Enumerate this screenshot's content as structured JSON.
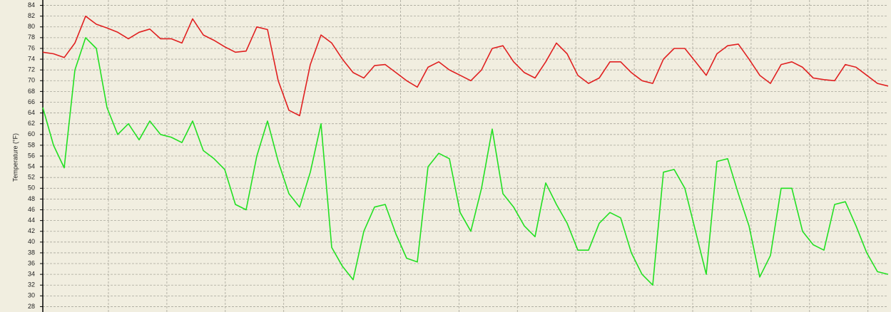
{
  "chart_data": {
    "type": "line",
    "y_label": "Temperature (°F)",
    "ylim": [
      27,
      85
    ],
    "yticks": [
      28,
      30,
      32,
      34,
      36,
      38,
      40,
      42,
      44,
      46,
      48,
      50,
      52,
      54,
      56,
      58,
      60,
      62,
      64,
      66,
      68,
      70,
      72,
      74,
      76,
      78,
      80,
      82,
      84
    ],
    "grid": true,
    "series": [
      {
        "color": "#e02020",
        "values": [
          75.3,
          75,
          74.3,
          77,
          82,
          80.5,
          79.8,
          79,
          77.8,
          79,
          79.6,
          77.8,
          77.8,
          77,
          81.5,
          78.5,
          77.5,
          76.3,
          75.3,
          75.5,
          80,
          79.5,
          70,
          64.5,
          63.5,
          73,
          78.5,
          77,
          74,
          71.5,
          70.5,
          72.8,
          73,
          71.5,
          70,
          68.8,
          72.5,
          73.5,
          72,
          71,
          70,
          72,
          76,
          76.5,
          73.5,
          71.5,
          70.5,
          73.5,
          77,
          75,
          71,
          69.5,
          70.5,
          73.5,
          73.5,
          71.5,
          70,
          69.5,
          74,
          76,
          76,
          73.5,
          71,
          75,
          76.5,
          76.8,
          74,
          71,
          69.5,
          73,
          73.5,
          72.5,
          70.5,
          70.2,
          70,
          73,
          72.5,
          71,
          69.5,
          69
        ]
      },
      {
        "color": "#22e022",
        "values": [
          65,
          58,
          53.8,
          72,
          78,
          76,
          65,
          60,
          62,
          59,
          62.5,
          60,
          59.5,
          58.5,
          62.5,
          57,
          55.5,
          53.5,
          47,
          46,
          56,
          62.5,
          55,
          49,
          46.5,
          53,
          62,
          39,
          35.5,
          33,
          42,
          46.5,
          47,
          41.5,
          37,
          36.3,
          54,
          56.5,
          55.5,
          45.5,
          42,
          50,
          61,
          49,
          46.5,
          43,
          41,
          51,
          47,
          43.5,
          38.5,
          38.5,
          43.5,
          45.5,
          44.5,
          38,
          34,
          32,
          53,
          53.5,
          50,
          42,
          34,
          55,
          55.5,
          49,
          43,
          33.5,
          37.5,
          50,
          50,
          42,
          39.5,
          38.5,
          47,
          47.5,
          43,
          38,
          34.5,
          34
        ]
      }
    ]
  }
}
